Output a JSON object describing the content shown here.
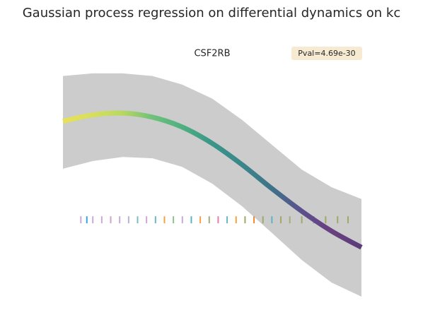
{
  "chart_data": {
    "type": "line",
    "title": "Gaussian process regression on differential dynamics on kc",
    "subtitle": "CSF2RB",
    "annotation": "Pval=4.69e-30",
    "x": [
      0,
      0.1,
      0.2,
      0.3,
      0.4,
      0.5,
      0.6,
      0.7,
      0.8,
      0.9,
      1.0
    ],
    "mean": [
      0.88,
      1.02,
      1.06,
      0.97,
      0.75,
      0.39,
      -0.08,
      -0.61,
      -1.11,
      -1.55,
      -1.91
    ],
    "band_upper": [
      1.88,
      1.94,
      1.94,
      1.88,
      1.69,
      1.38,
      0.91,
      0.36,
      -0.19,
      -0.58,
      -0.84
    ],
    "band_lower": [
      -0.17,
      0,
      0.09,
      0.06,
      -0.13,
      -0.5,
      -1,
      -1.59,
      -2.19,
      -2.69,
      -3.0
    ],
    "mean_colors": [
      "#e8e05a",
      "#d6df5c",
      "#b8d860",
      "#6fc17a",
      "#4eb07f",
      "#3a9688",
      "#3b868a",
      "#3e7389",
      "#5c4f8d",
      "#6a3f80",
      "#5a3c7a"
    ],
    "band_color": "#cccccc",
    "xlim": [
      0,
      1
    ],
    "ylim": [
      -3,
      2
    ],
    "rug": {
      "y": -1.3,
      "x": [
        0.06,
        0.08,
        0.1,
        0.13,
        0.16,
        0.19,
        0.22,
        0.25,
        0.28,
        0.31,
        0.34,
        0.37,
        0.4,
        0.43,
        0.46,
        0.49,
        0.52,
        0.55,
        0.58,
        0.61,
        0.64,
        0.67,
        0.7,
        0.73,
        0.76,
        0.8,
        0.84,
        0.88,
        0.92,
        0.955
      ],
      "colors": [
        "#c9a9d6",
        "#36a3d9",
        "#c9a9d6",
        "#c9a9d6",
        "#d0a4c8",
        "#c9a9d6",
        "#b6b3d2",
        "#7fbcc0",
        "#c9a9d6",
        "#6fb6c4",
        "#f1a340",
        "#8fbf8f",
        "#c9a9d6",
        "#5fb2c4",
        "#f1a340",
        "#9fb07a",
        "#e07fb0",
        "#6bb5c0",
        "#f1a340",
        "#a0a868",
        "#f08a30",
        "#a0a868",
        "#5fb2c4",
        "#a0a868",
        "#9fb07a",
        "#a0a868",
        "#5fb2c4",
        "#a0a868",
        "#a0a868",
        "#a0a868"
      ]
    },
    "annotation_color": "#f6ead2"
  }
}
